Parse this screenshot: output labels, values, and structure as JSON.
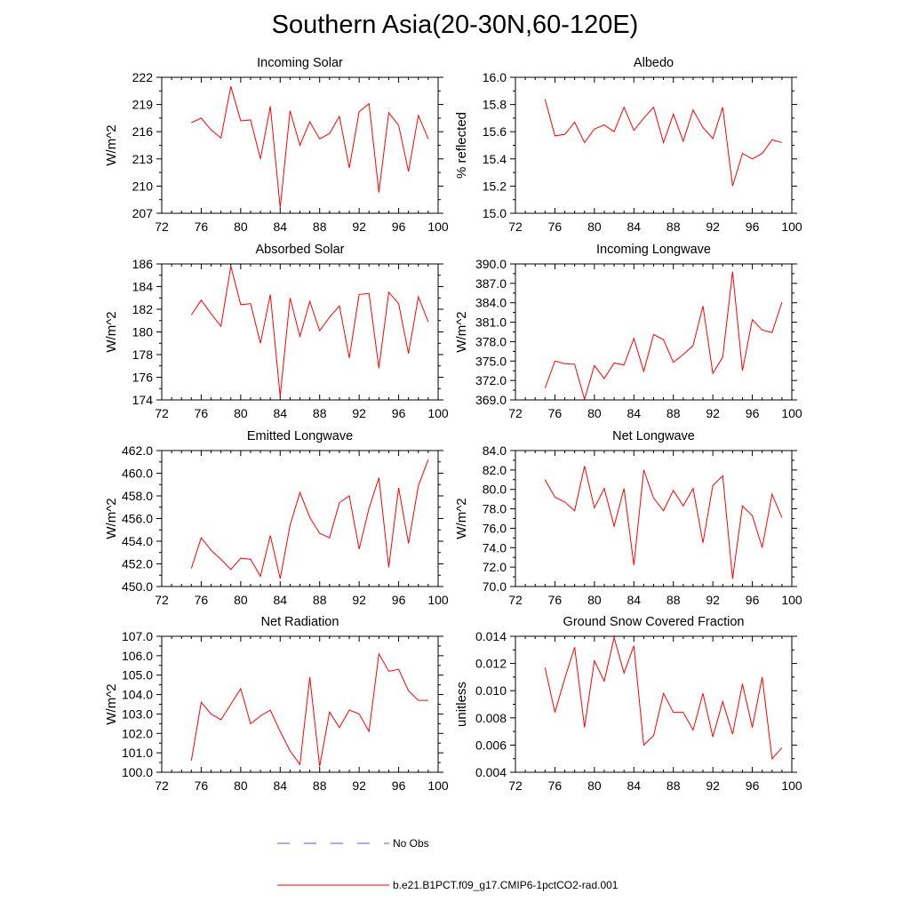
{
  "page_title": "Southern Asia(20-30N,60-120E)",
  "legend": {
    "items": [
      {
        "label": "No Obs",
        "style": "dashed",
        "color": "#5a5ad6"
      },
      {
        "label": "b.e21.B1PCT.f09_g17.CMIP6-1pctCO2-rad.001",
        "style": "solid",
        "color": "#ff0000"
      }
    ]
  },
  "chart_data": [
    {
      "type": "line",
      "title": "Incoming Solar",
      "ylabel": "W/m^2",
      "xlim": [
        72,
        100
      ],
      "ylim": [
        207,
        222
      ],
      "xticks": [
        72,
        76,
        80,
        84,
        88,
        92,
        96,
        100
      ],
      "yticks": [
        207,
        210,
        213,
        216,
        219,
        222
      ],
      "ytick_labels": [
        "207",
        "210",
        "213",
        "216",
        "219",
        "222"
      ],
      "series": [
        {
          "color": "#ff0000",
          "x": [
            75,
            76,
            77,
            78,
            79,
            80,
            81,
            82,
            83,
            84,
            85,
            86,
            87,
            88,
            89,
            90,
            91,
            92,
            93,
            94,
            95,
            96,
            97,
            98,
            99
          ],
          "y": [
            217.0,
            217.5,
            216.2,
            215.3,
            221.0,
            217.2,
            217.3,
            213.0,
            218.8,
            207.6,
            218.3,
            214.5,
            217.1,
            215.2,
            215.8,
            217.7,
            212.0,
            218.2,
            219.1,
            209.3,
            218.1,
            216.7,
            211.6,
            217.8,
            215.2
          ]
        }
      ]
    },
    {
      "type": "line",
      "title": "Albedo",
      "ylabel": "% reflected",
      "xlim": [
        72,
        100
      ],
      "ylim": [
        15.0,
        16.0
      ],
      "xticks": [
        72,
        76,
        80,
        84,
        88,
        92,
        96,
        100
      ],
      "yticks": [
        15.0,
        15.2,
        15.4,
        15.6,
        15.8,
        16.0
      ],
      "ytick_labels": [
        "15.0",
        "15.2",
        "15.4",
        "15.6",
        "15.8",
        "16.0"
      ],
      "series": [
        {
          "color": "#ff0000",
          "x": [
            75,
            76,
            77,
            78,
            79,
            80,
            81,
            82,
            83,
            84,
            85,
            86,
            87,
            88,
            89,
            90,
            91,
            92,
            93,
            94,
            95,
            96,
            97,
            98,
            99
          ],
          "y": [
            15.84,
            15.57,
            15.58,
            15.67,
            15.52,
            15.62,
            15.65,
            15.6,
            15.78,
            15.61,
            15.7,
            15.78,
            15.52,
            15.73,
            15.53,
            15.76,
            15.63,
            15.55,
            15.78,
            15.2,
            15.44,
            15.4,
            15.44,
            15.54,
            15.52
          ]
        }
      ]
    },
    {
      "type": "line",
      "title": "Absorbed Solar",
      "ylabel": "W/m^2",
      "xlim": [
        72,
        100
      ],
      "ylim": [
        174,
        186
      ],
      "xticks": [
        72,
        76,
        80,
        84,
        88,
        92,
        96,
        100
      ],
      "yticks": [
        174,
        176,
        178,
        180,
        182,
        184,
        186
      ],
      "ytick_labels": [
        "174",
        "176",
        "178",
        "180",
        "182",
        "184",
        "186"
      ],
      "series": [
        {
          "color": "#ff0000",
          "x": [
            75,
            76,
            77,
            78,
            79,
            80,
            81,
            82,
            83,
            84,
            85,
            86,
            87,
            88,
            89,
            90,
            91,
            92,
            93,
            94,
            95,
            96,
            97,
            98,
            99
          ],
          "y": [
            181.5,
            182.8,
            181.6,
            180.5,
            185.8,
            182.4,
            182.5,
            179.0,
            183.3,
            174.3,
            183.0,
            179.6,
            182.7,
            180.1,
            181.3,
            182.3,
            177.7,
            183.3,
            183.4,
            176.8,
            183.5,
            182.5,
            178.1,
            183.1,
            180.9
          ]
        }
      ]
    },
    {
      "type": "line",
      "title": "Incoming Longwave",
      "ylabel": "W/m^2",
      "xlim": [
        72,
        100
      ],
      "ylim": [
        369.0,
        390.0
      ],
      "xticks": [
        72,
        76,
        80,
        84,
        88,
        92,
        96,
        100
      ],
      "yticks": [
        369.0,
        372.0,
        375.0,
        378.0,
        381.0,
        384.0,
        387.0,
        390.0
      ],
      "ytick_labels": [
        "369.0",
        "372.0",
        "375.0",
        "378.0",
        "381.0",
        "384.0",
        "387.0",
        "390.0"
      ],
      "series": [
        {
          "color": "#ff0000",
          "x": [
            75,
            76,
            77,
            78,
            79,
            80,
            81,
            82,
            83,
            84,
            85,
            86,
            87,
            88,
            89,
            90,
            91,
            92,
            93,
            94,
            95,
            96,
            97,
            98,
            99
          ],
          "y": [
            370.8,
            375.0,
            374.6,
            374.5,
            369.1,
            374.3,
            372.3,
            374.7,
            374.4,
            378.5,
            373.4,
            379.1,
            378.3,
            374.8,
            376.0,
            377.4,
            383.5,
            373.1,
            375.6,
            388.8,
            373.5,
            381.4,
            379.8,
            379.4,
            384.1
          ]
        }
      ]
    },
    {
      "type": "line",
      "title": "Emitted Longwave",
      "ylabel": "W/m^2",
      "xlim": [
        72,
        100
      ],
      "ylim": [
        450.0,
        462.0
      ],
      "xticks": [
        72,
        76,
        80,
        84,
        88,
        92,
        96,
        100
      ],
      "yticks": [
        450.0,
        452.0,
        454.0,
        456.0,
        458.0,
        460.0,
        462.0
      ],
      "ytick_labels": [
        "450.0",
        "452.0",
        "454.0",
        "456.0",
        "458.0",
        "460.0",
        "462.0"
      ],
      "series": [
        {
          "color": "#ff0000",
          "x": [
            75,
            76,
            77,
            78,
            79,
            80,
            81,
            82,
            83,
            84,
            85,
            86,
            87,
            88,
            89,
            90,
            91,
            92,
            93,
            94,
            95,
            96,
            97,
            98,
            99
          ],
          "y": [
            451.6,
            454.3,
            453.2,
            452.4,
            451.5,
            452.5,
            452.4,
            450.9,
            454.5,
            450.7,
            455.4,
            458.3,
            456.1,
            454.7,
            454.3,
            457.4,
            458.0,
            453.3,
            456.9,
            459.6,
            451.7,
            458.7,
            453.8,
            458.9,
            461.2
          ]
        }
      ]
    },
    {
      "type": "line",
      "title": "Net Longwave",
      "ylabel": "W/m^2",
      "xlim": [
        72,
        100
      ],
      "ylim": [
        70.0,
        84.0
      ],
      "xticks": [
        72,
        76,
        80,
        84,
        88,
        92,
        96,
        100
      ],
      "yticks": [
        70.0,
        72.0,
        74.0,
        76.0,
        78.0,
        80.0,
        82.0,
        84.0
      ],
      "ytick_labels": [
        "70.0",
        "72.0",
        "74.0",
        "76.0",
        "78.0",
        "80.0",
        "82.0",
        "84.0"
      ],
      "series": [
        {
          "color": "#ff0000",
          "x": [
            75,
            76,
            77,
            78,
            79,
            80,
            81,
            82,
            83,
            84,
            85,
            86,
            87,
            88,
            89,
            90,
            91,
            92,
            93,
            94,
            95,
            96,
            97,
            98,
            99
          ],
          "y": [
            81.0,
            79.2,
            78.7,
            77.8,
            82.4,
            78.1,
            80.1,
            76.2,
            80.1,
            72.2,
            82.0,
            79.1,
            77.8,
            79.9,
            78.3,
            80.1,
            74.5,
            80.4,
            81.4,
            70.8,
            78.3,
            77.3,
            74.0,
            79.5,
            77.1
          ]
        }
      ]
    },
    {
      "type": "line",
      "title": "Net Radiation",
      "ylabel": "W/m^2",
      "xlim": [
        72,
        100
      ],
      "ylim": [
        100.0,
        107.0
      ],
      "xticks": [
        72,
        76,
        80,
        84,
        88,
        92,
        96,
        100
      ],
      "yticks": [
        100.0,
        101.0,
        102.0,
        103.0,
        104.0,
        105.0,
        106.0,
        107.0
      ],
      "ytick_labels": [
        "100.0",
        "101.0",
        "102.0",
        "103.0",
        "104.0",
        "105.0",
        "106.0",
        "107.0"
      ],
      "series": [
        {
          "color": "#ff0000",
          "x": [
            75,
            76,
            77,
            78,
            79,
            80,
            81,
            82,
            83,
            84,
            85,
            86,
            87,
            88,
            89,
            90,
            91,
            92,
            93,
            94,
            95,
            96,
            97,
            98,
            99
          ],
          "y": [
            100.6,
            103.6,
            103.0,
            102.7,
            103.5,
            104.3,
            102.5,
            102.9,
            103.2,
            102.1,
            101.1,
            100.4,
            104.9,
            100.3,
            103.1,
            102.3,
            103.2,
            103.0,
            102.1,
            106.1,
            105.2,
            105.3,
            104.2,
            103.7,
            103.7
          ]
        }
      ]
    },
    {
      "type": "line",
      "title": "Ground Snow Covered Fraction",
      "ylabel": "unitless",
      "xlim": [
        72,
        100
      ],
      "ylim": [
        0.004,
        0.014
      ],
      "xticks": [
        72,
        76,
        80,
        84,
        88,
        92,
        96,
        100
      ],
      "yticks": [
        0.004,
        0.006,
        0.008,
        0.01,
        0.012,
        0.014
      ],
      "ytick_labels": [
        "0.004",
        "0.006",
        "0.008",
        "0.010",
        "0.012",
        "0.014"
      ],
      "series": [
        {
          "color": "#ff0000",
          "x": [
            75,
            76,
            77,
            78,
            79,
            80,
            81,
            82,
            83,
            84,
            85,
            86,
            87,
            88,
            89,
            90,
            91,
            92,
            93,
            94,
            95,
            96,
            97,
            98,
            99
          ],
          "y": [
            0.0117,
            0.0084,
            0.0109,
            0.0132,
            0.0073,
            0.0122,
            0.0107,
            0.0139,
            0.0113,
            0.0133,
            0.006,
            0.0067,
            0.0098,
            0.0084,
            0.0084,
            0.0071,
            0.0098,
            0.0066,
            0.0092,
            0.0068,
            0.0105,
            0.0073,
            0.011,
            0.005,
            0.0058
          ]
        }
      ]
    }
  ]
}
